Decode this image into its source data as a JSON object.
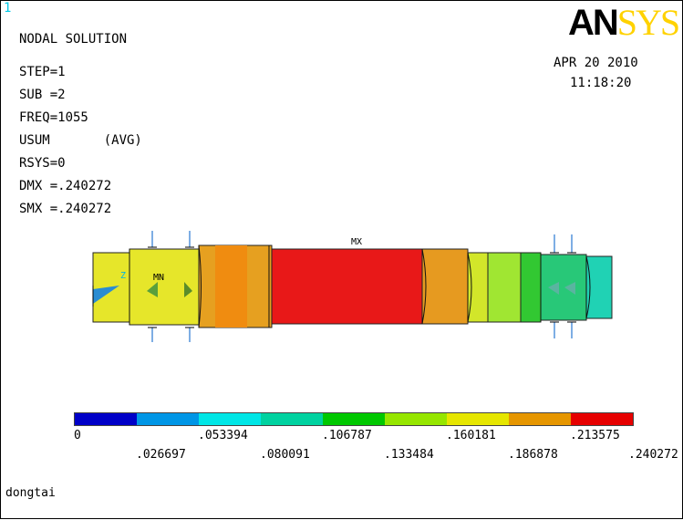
{
  "window_number": "1",
  "logo": {
    "an": "AN",
    "sys": "SYS"
  },
  "info_lines": [
    "NODAL SOLUTION",
    "STEP=1",
    "SUB =2",
    "FREQ=1055",
    "USUM       (AVG)",
    "RSYS=0",
    "DMX =.240272",
    "SMX =.240272"
  ],
  "date": "APR 20 2010",
  "time": "11:18:20",
  "labels": {
    "max": "MX",
    "min": "MN",
    "axis_z": "Z"
  },
  "legend": {
    "colors": [
      "#0000c8",
      "#0096e6",
      "#00e6e6",
      "#00d2a0",
      "#00c800",
      "#96e600",
      "#e6e600",
      "#e69600",
      "#e60000"
    ],
    "top_values": [
      "0",
      ".053394",
      ".106787",
      ".160181",
      ".213575"
    ],
    "bottom_values": [
      ".026697",
      ".080091",
      ".133484",
      ".186878",
      ".240272"
    ]
  },
  "footer_title": "dongtai"
}
